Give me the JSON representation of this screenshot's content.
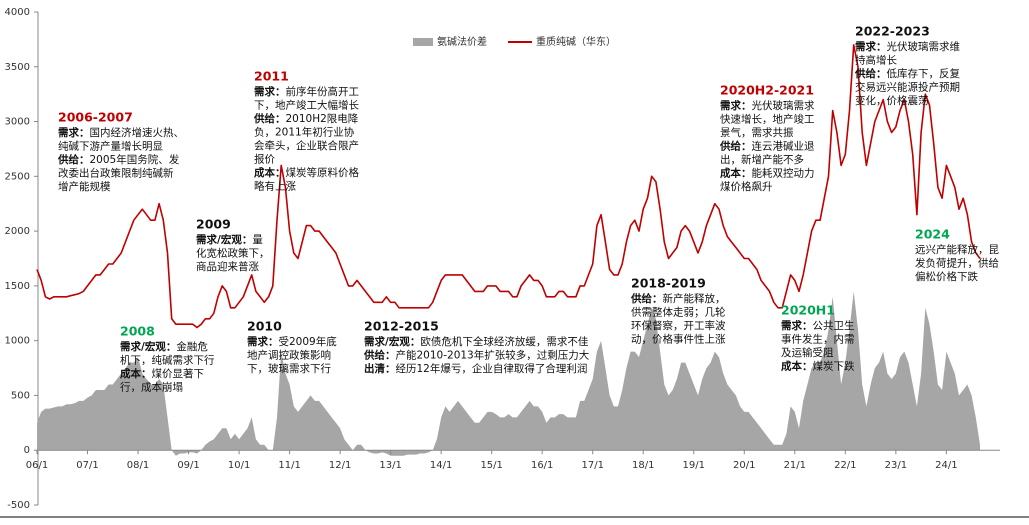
{
  "chart_data": {
    "type": "line",
    "legend": "top",
    "categories": [
      "06/1",
      null,
      null,
      null,
      null,
      null,
      null,
      null,
      null,
      null,
      null,
      null,
      "07/1",
      null,
      null,
      null,
      null,
      null,
      null,
      null,
      null,
      null,
      null,
      null,
      "08/1",
      null,
      null,
      null,
      null,
      null,
      null,
      null,
      null,
      null,
      null,
      null,
      "09/1",
      null,
      null,
      null,
      null,
      null,
      null,
      null,
      null,
      null,
      null,
      null,
      "10/1",
      null,
      null,
      null,
      null,
      null,
      null,
      null,
      null,
      null,
      null,
      null,
      "11/1",
      null,
      null,
      null,
      null,
      null,
      null,
      null,
      null,
      null,
      null,
      null,
      "12/1",
      null,
      null,
      null,
      null,
      null,
      null,
      null,
      null,
      null,
      null,
      null,
      "13/1",
      null,
      null,
      null,
      null,
      null,
      null,
      null,
      null,
      null,
      null,
      null,
      "14/1",
      null,
      null,
      null,
      null,
      null,
      null,
      null,
      null,
      null,
      null,
      null,
      "15/1",
      null,
      null,
      null,
      null,
      null,
      null,
      null,
      null,
      null,
      null,
      null,
      "16/1",
      null,
      null,
      null,
      null,
      null,
      null,
      null,
      null,
      null,
      null,
      null,
      "17/1",
      null,
      null,
      null,
      null,
      null,
      null,
      null,
      null,
      null,
      null,
      null,
      "18/1",
      null,
      null,
      null,
      null,
      null,
      null,
      null,
      null,
      null,
      null,
      null,
      "19/1",
      null,
      null,
      null,
      null,
      null,
      null,
      null,
      null,
      null,
      null,
      null,
      "20/1",
      null,
      null,
      null,
      null,
      null,
      null,
      null,
      null,
      null,
      null,
      null,
      "21/1",
      null,
      null,
      null,
      null,
      null,
      null,
      null,
      null,
      null,
      null,
      null,
      "22/1",
      null,
      null,
      null,
      null,
      null,
      null,
      null,
      null,
      null,
      null,
      null,
      "23/1",
      null,
      null,
      null,
      null,
      null,
      null,
      null,
      null,
      null,
      null,
      null,
      "24/1",
      null,
      null,
      null,
      null,
      null,
      null,
      null,
      null
    ],
    "series": [
      {
        "name": "氨碱法价差",
        "kind": "area",
        "color": "#a6a6a6",
        "values": [
          250,
          350,
          380,
          380,
          390,
          400,
          400,
          420,
          420,
          430,
          450,
          450,
          480,
          500,
          550,
          550,
          550,
          600,
          600,
          650,
          700,
          750,
          800,
          800,
          850,
          700,
          650,
          600,
          600,
          650,
          600,
          300,
          0,
          -50,
          -30,
          -30,
          -20,
          -20,
          -30,
          0,
          50,
          80,
          100,
          150,
          200,
          200,
          100,
          150,
          100,
          150,
          200,
          300,
          100,
          50,
          50,
          0,
          0,
          300,
          900,
          700,
          600,
          400,
          350,
          400,
          450,
          500,
          450,
          450,
          400,
          350,
          300,
          250,
          200,
          100,
          50,
          0,
          50,
          50,
          0,
          -20,
          -30,
          -30,
          -20,
          -30,
          -50,
          -50,
          -50,
          -50,
          -40,
          -40,
          -40,
          -30,
          -30,
          -20,
          0,
          100,
          300,
          400,
          350,
          400,
          450,
          400,
          350,
          300,
          250,
          250,
          300,
          350,
          350,
          330,
          300,
          300,
          330,
          300,
          300,
          350,
          400,
          450,
          400,
          400,
          350,
          250,
          300,
          300,
          330,
          330,
          300,
          300,
          300,
          450,
          450,
          550,
          650,
          900,
          1000,
          750,
          500,
          400,
          400,
          550,
          750,
          900,
          900,
          850,
          1000,
          1150,
          1300,
          1200,
          900,
          600,
          500,
          550,
          650,
          800,
          800,
          700,
          600,
          500,
          650,
          750,
          800,
          900,
          850,
          700,
          600,
          550,
          500,
          400,
          350,
          350,
          300,
          250,
          200,
          150,
          100,
          50,
          50,
          50,
          150,
          400,
          350,
          200,
          450,
          600,
          750,
          800,
          800,
          900,
          1100,
          1400,
          1000,
          600,
          800,
          1100,
          1450,
          1100,
          600,
          400,
          600,
          750,
          800,
          900,
          700,
          650,
          700,
          850,
          900,
          800,
          600,
          400,
          700,
          1300,
          1150,
          900,
          600,
          550,
          900,
          800,
          700,
          500,
          550,
          600,
          500,
          300,
          50
        ]
      },
      {
        "name": "重质纯碱（华东）",
        "kind": "line",
        "color": "#c00000",
        "values": [
          1650,
          1550,
          1400,
          1380,
          1400,
          1400,
          1400,
          1400,
          1410,
          1420,
          1430,
          1450,
          1500,
          1550,
          1600,
          1600,
          1650,
          1700,
          1700,
          1750,
          1800,
          1900,
          2000,
          2100,
          2150,
          2200,
          2150,
          2100,
          2100,
          2250,
          2100,
          1800,
          1200,
          1150,
          1150,
          1150,
          1150,
          1150,
          1120,
          1150,
          1200,
          1200,
          1250,
          1400,
          1500,
          1450,
          1300,
          1300,
          1350,
          1400,
          1500,
          1600,
          1450,
          1400,
          1350,
          1400,
          1500,
          2100,
          2600,
          2400,
          2000,
          1800,
          1750,
          1900,
          2050,
          2050,
          2000,
          2000,
          1950,
          1900,
          1850,
          1800,
          1700,
          1600,
          1500,
          1500,
          1550,
          1500,
          1450,
          1400,
          1350,
          1350,
          1350,
          1400,
          1350,
          1350,
          1300,
          1300,
          1300,
          1300,
          1300,
          1300,
          1300,
          1300,
          1350,
          1450,
          1550,
          1600,
          1600,
          1600,
          1600,
          1600,
          1550,
          1500,
          1450,
          1450,
          1450,
          1500,
          1500,
          1500,
          1450,
          1450,
          1450,
          1400,
          1400,
          1500,
          1550,
          1600,
          1550,
          1550,
          1500,
          1400,
          1400,
          1400,
          1450,
          1450,
          1400,
          1400,
          1400,
          1500,
          1500,
          1600,
          1700,
          2050,
          2150,
          1900,
          1650,
          1600,
          1600,
          1700,
          1900,
          2050,
          2100,
          2000,
          2200,
          2300,
          2500,
          2450,
          2200,
          1900,
          1750,
          1800,
          1850,
          2000,
          2050,
          2000,
          1900,
          1800,
          1900,
          2050,
          2150,
          2250,
          2200,
          2050,
          1950,
          1900,
          1850,
          1800,
          1750,
          1750,
          1700,
          1650,
          1550,
          1500,
          1450,
          1350,
          1300,
          1300,
          1450,
          1600,
          1550,
          1450,
          1600,
          1800,
          2000,
          2100,
          2100,
          2300,
          2500,
          3100,
          2900,
          2600,
          2700,
          3100,
          3700,
          3500,
          2900,
          2600,
          2800,
          3000,
          3100,
          3200,
          3000,
          2900,
          2950,
          3100,
          3200,
          3000,
          2700,
          2150,
          2900,
          3250,
          3150,
          2800,
          2400,
          2300,
          2600,
          2500,
          2400,
          2200,
          2300,
          2150,
          1900,
          1800,
          1750
        ]
      }
    ],
    "ylim": [
      -500,
      4000
    ],
    "yticks": [
      -500,
      0,
      500,
      1000,
      1500,
      2000,
      2500,
      3000,
      3500,
      4000
    ],
    "annotations": [
      {
        "title": "2006-2007",
        "color": "#c00000",
        "lines": [
          {
            "b": "需求：",
            "t": "国内经济增速火热、"
          },
          {
            "t": "纯碱下游产量增长明显"
          },
          {
            "b": "供给：",
            "t": "2005年国务院、发"
          },
          {
            "t": "改委出台政策限制纯碱新"
          },
          {
            "t": "增产能规模"
          }
        ]
      },
      {
        "title": "2008",
        "color": "#00a651",
        "lines": [
          {
            "b": "需求/宏观：",
            "t": "金融危"
          },
          {
            "t": "机下，纯碱需求下行"
          },
          {
            "b": "成本：",
            "t": "煤价显著下"
          },
          {
            "t": "行，成本崩塌"
          }
        ]
      },
      {
        "title": "2009",
        "color": "#111111",
        "lines": [
          {
            "b": "需求/宏观：",
            "t": "量"
          },
          {
            "t": "化宽松政策下，"
          },
          {
            "t": "商品迎来普涨"
          }
        ]
      },
      {
        "title": "2011",
        "color": "#c00000",
        "lines": [
          {
            "b": "需求：",
            "t": "前序年份高开工"
          },
          {
            "t": "下，地产竣工大幅增长"
          },
          {
            "b": "供给：",
            "t": "2010H2限电降"
          },
          {
            "t": "负，2011年初行业协"
          },
          {
            "t": "会牵头，企业联合限产"
          },
          {
            "t": "报价"
          },
          {
            "b": "成本：",
            "t": "煤炭等原料价格"
          },
          {
            "t": "略有上涨"
          }
        ]
      },
      {
        "title": "2010",
        "color": "#111111",
        "lines": [
          {
            "b": "需求：",
            "t": "受2009年底"
          },
          {
            "t": "地产调控政策影响"
          },
          {
            "t": "下，玻璃需求下行"
          }
        ]
      },
      {
        "title": "2012-2015",
        "color": "#111111",
        "lines": [
          {
            "b": "需求/宏观：",
            "t": "欧债危机下全球经济放缓，需求不佳"
          },
          {
            "b": "供给：",
            "t": "产能2010-2013年扩张较多，过剩压力大"
          },
          {
            "b": "出清：",
            "t": "经历12年爆亏，企业自律取得了合理利润"
          }
        ]
      },
      {
        "title": "2018-2019",
        "color": "#111111",
        "lines": [
          {
            "b": "供给：",
            "t": "新产能释放，"
          },
          {
            "t": "供需整体走弱；几轮"
          },
          {
            "t": "环保督察，开工率波"
          },
          {
            "t": "动，价格事件性上涨"
          }
        ]
      },
      {
        "title": "2020H2-2021",
        "color": "#c00000",
        "lines": [
          {
            "b": "需求：",
            "t": "光伏玻璃需求"
          },
          {
            "t": "快速增长，地产竣工"
          },
          {
            "t": "景气，需求共振"
          },
          {
            "b": "供给：",
            "t": "连云港碱业退"
          },
          {
            "t": "出，新增产能不多"
          },
          {
            "b": "成本：",
            "t": "能耗双控动力"
          },
          {
            "t": "煤价格飙升"
          }
        ]
      },
      {
        "title": "2020H1",
        "color": "#00a651",
        "lines": [
          {
            "b": "需求：",
            "t": "公共卫生"
          },
          {
            "t": "事件发生，内需"
          },
          {
            "t": "及运输受阻"
          },
          {
            "b": "成本：",
            "t": "煤炭下跌"
          }
        ]
      },
      {
        "title": "2022-2023",
        "color": "#111111",
        "lines": [
          {
            "b": "需求：",
            "t": "光伏玻璃需求维"
          },
          {
            "t": "持高增长"
          },
          {
            "b": "供给：",
            "t": "低库存下，反复"
          },
          {
            "t": "交易远兴能源投产预期"
          },
          {
            "t": "变化，价格震荡"
          }
        ]
      },
      {
        "title": "2024",
        "color": "#00a651",
        "lines": [
          {
            "t": "远兴产能释放，昆"
          },
          {
            "t": "发负荷提升，供给"
          },
          {
            "t": "偏松价格下跌"
          }
        ]
      }
    ]
  }
}
